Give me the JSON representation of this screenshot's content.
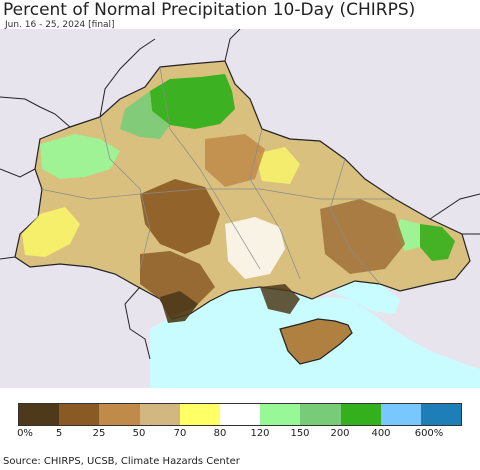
{
  "header": {
    "title": "Percent of Normal Precipitation 10-Day (CHIRPS)",
    "subtitle": "Jun. 16 - 25, 2024 [final]"
  },
  "map": {
    "colors": {
      "background_land": "#e8e4ee",
      "sea": "#c8fcff",
      "border": "#222222",
      "admin_border": "#8a8a8a"
    }
  },
  "legend": {
    "colors": [
      "#4e3a1a",
      "#8a5a24",
      "#c08a48",
      "#d2b880",
      "#ffff66",
      "#ffffff",
      "#98f898",
      "#78cc78",
      "#34b01c",
      "#78c8ff",
      "#1e7eb8"
    ],
    "tick_labels": [
      "0%",
      "5",
      "25",
      "50",
      "70",
      "80",
      "120",
      "150",
      "200",
      "400",
      "600%"
    ]
  },
  "footer": {
    "source": "Source: CHIRPS, UCSB, Climate Hazards Center"
  }
}
